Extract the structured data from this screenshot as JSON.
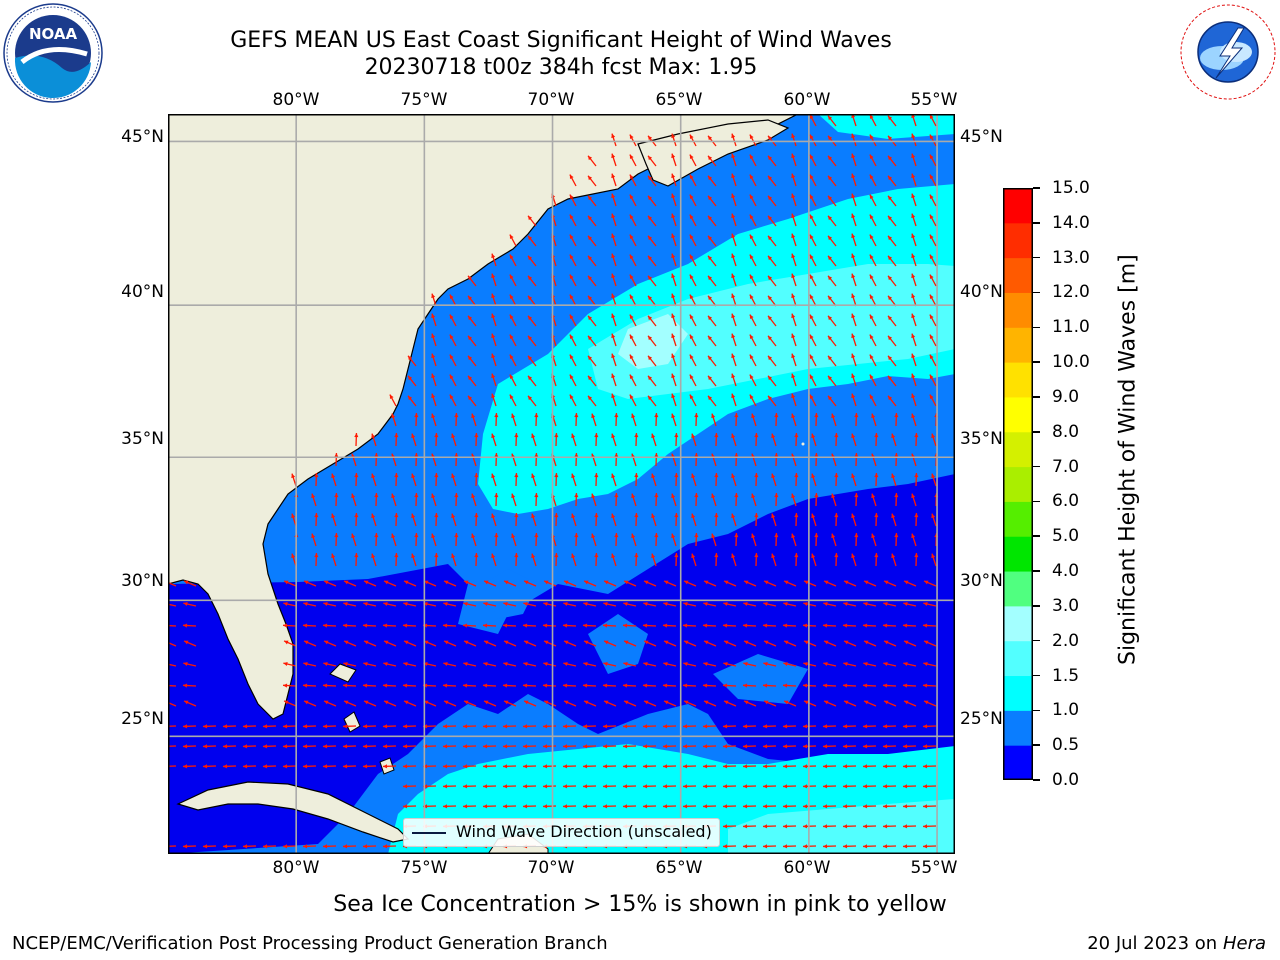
{
  "header": {
    "title_line1": "GEFS MEAN US East Coast Significant Height of Wind Waves",
    "title_line2": "20230718 t00z 384h fcst   Max: 1.95"
  },
  "logos": {
    "noaa_text": "NOAA",
    "noaa_ring": "NATIONAL OCEANIC AND ATMOSPHERIC ADMINISTRATION · U.S. DEPARTMENT OF COMMERCE",
    "nws_ring": "NATIONAL WEATHER SERVICE"
  },
  "map": {
    "lon_ticks": [
      "80°W",
      "75°W",
      "70°W",
      "65°W",
      "60°W",
      "55°W"
    ],
    "lat_ticks": [
      "45°N",
      "40°N",
      "35°N",
      "30°N",
      "25°N"
    ],
    "lon_range": [
      -85,
      -54.3
    ],
    "lat_range": [
      20.5,
      45.8
    ],
    "grid": true,
    "land_color": "#eeeedc",
    "arrow_color": "#ff1a00",
    "legend_label": "Wind Wave Direction (unscaled)"
  },
  "colorbar": {
    "label": "Significant Height of Wind Waves [m]",
    "ticks": [
      "0.0",
      "0.5",
      "1.0",
      "1.5",
      "2.0",
      "3.0",
      "4.0",
      "5.0",
      "6.0",
      "7.0",
      "8.0",
      "9.0",
      "10.0",
      "11.0",
      "12.0",
      "13.0",
      "14.0",
      "15.0"
    ],
    "colors": [
      "#0000ff",
      "#0a7dff",
      "#00ffff",
      "#52ffff",
      "#a3ffff",
      "#50ff80",
      "#00e600",
      "#55ee00",
      "#aaee00",
      "#d4f000",
      "#ffff00",
      "#ffe100",
      "#ffb400",
      "#ff8c00",
      "#ff5a00",
      "#ff2d00",
      "#ff0000"
    ]
  },
  "footer": {
    "note": "Sea Ice Concentration > 15% is shown in pink to yellow",
    "credit": "NCEP/EMC/Verification Post Processing Product Generation Branch",
    "date": "20 Jul 2023 on",
    "host": "Hera"
  }
}
